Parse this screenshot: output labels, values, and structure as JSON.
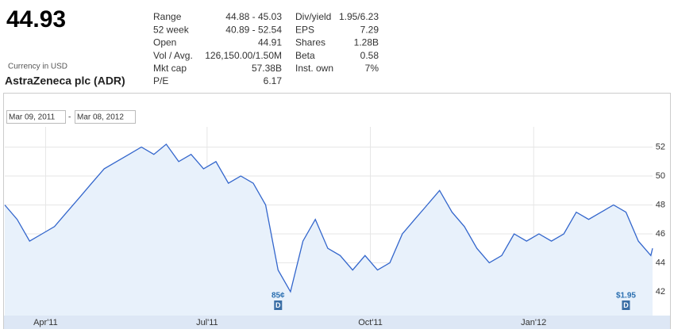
{
  "quote": {
    "price": "44.93",
    "currency": "Currency in USD",
    "company": "AstraZeneca plc (ADR)",
    "stats_left": [
      [
        "Range",
        "44.88 - 45.03"
      ],
      [
        "52 week",
        "40.89 - 52.54"
      ],
      [
        "Open",
        "44.91"
      ],
      [
        "Vol / Avg.",
        "126,150.00/1.50M"
      ],
      [
        "Mkt cap",
        "57.38B"
      ],
      [
        "P/E",
        "6.17"
      ]
    ],
    "stats_right": [
      [
        "Div/yield",
        "1.95/6.23"
      ],
      [
        "EPS",
        "7.29"
      ],
      [
        "Shares",
        "1.28B"
      ],
      [
        "Beta",
        "0.58"
      ],
      [
        "Inst. own",
        "7%"
      ]
    ]
  },
  "chart_data": {
    "type": "line",
    "range_from": "Mar 09, 2011",
    "range_separator": "-",
    "range_to": "Mar 08, 2012",
    "x": [
      "2011-03-09",
      "2011-03-16",
      "2011-03-23",
      "2011-03-30",
      "2011-04-06",
      "2011-04-13",
      "2011-04-20",
      "2011-04-27",
      "2011-05-04",
      "2011-05-11",
      "2011-05-18",
      "2011-05-25",
      "2011-06-01",
      "2011-06-08",
      "2011-06-15",
      "2011-06-22",
      "2011-06-29",
      "2011-07-06",
      "2011-07-13",
      "2011-07-20",
      "2011-07-27",
      "2011-08-03",
      "2011-08-10",
      "2011-08-17",
      "2011-08-24",
      "2011-08-31",
      "2011-09-07",
      "2011-09-14",
      "2011-09-21",
      "2011-09-28",
      "2011-10-05",
      "2011-10-12",
      "2011-10-19",
      "2011-10-26",
      "2011-11-02",
      "2011-11-09",
      "2011-11-16",
      "2011-11-23",
      "2011-11-30",
      "2011-12-07",
      "2011-12-14",
      "2011-12-21",
      "2011-12-28",
      "2012-01-04",
      "2012-01-11",
      "2012-01-18",
      "2012-01-25",
      "2012-02-01",
      "2012-02-08",
      "2012-02-15",
      "2012-02-22",
      "2012-02-29",
      "2012-03-07",
      "2012-03-08"
    ],
    "values": [
      48.0,
      47.0,
      45.5,
      46.0,
      46.5,
      47.5,
      48.5,
      49.5,
      50.5,
      51.0,
      51.5,
      52.0,
      51.5,
      52.2,
      51.0,
      51.5,
      50.5,
      51.0,
      49.5,
      50.0,
      49.5,
      48.0,
      43.5,
      42.0,
      45.5,
      47.0,
      45.0,
      44.5,
      43.5,
      44.5,
      43.5,
      44.0,
      46.0,
      47.0,
      48.0,
      49.0,
      47.5,
      46.5,
      45.0,
      44.0,
      44.5,
      46.0,
      45.5,
      46.0,
      45.5,
      46.0,
      47.5,
      47.0,
      47.5,
      48.0,
      47.5,
      45.5,
      44.5,
      45.0
    ],
    "color": "#3366cc",
    "xlim": [
      "2011-03-09",
      "2012-03-08"
    ],
    "xticks": [
      {
        "value": "2011-04-01",
        "label": "Apr'11"
      },
      {
        "value": "2011-07-01",
        "label": "Jul'11"
      },
      {
        "value": "2011-10-01",
        "label": "Oct'11"
      },
      {
        "value": "2012-01-01",
        "label": "Jan'12"
      }
    ],
    "ylim": [
      40.35,
      53.4
    ],
    "yticks": [
      42,
      44,
      46,
      48,
      50,
      52
    ],
    "grid": true,
    "annotations": [
      {
        "x": "2011-08-10",
        "label": "85¢",
        "flag": "D"
      },
      {
        "x": "2012-02-22",
        "label": "$1.95",
        "flag": "D"
      }
    ]
  }
}
